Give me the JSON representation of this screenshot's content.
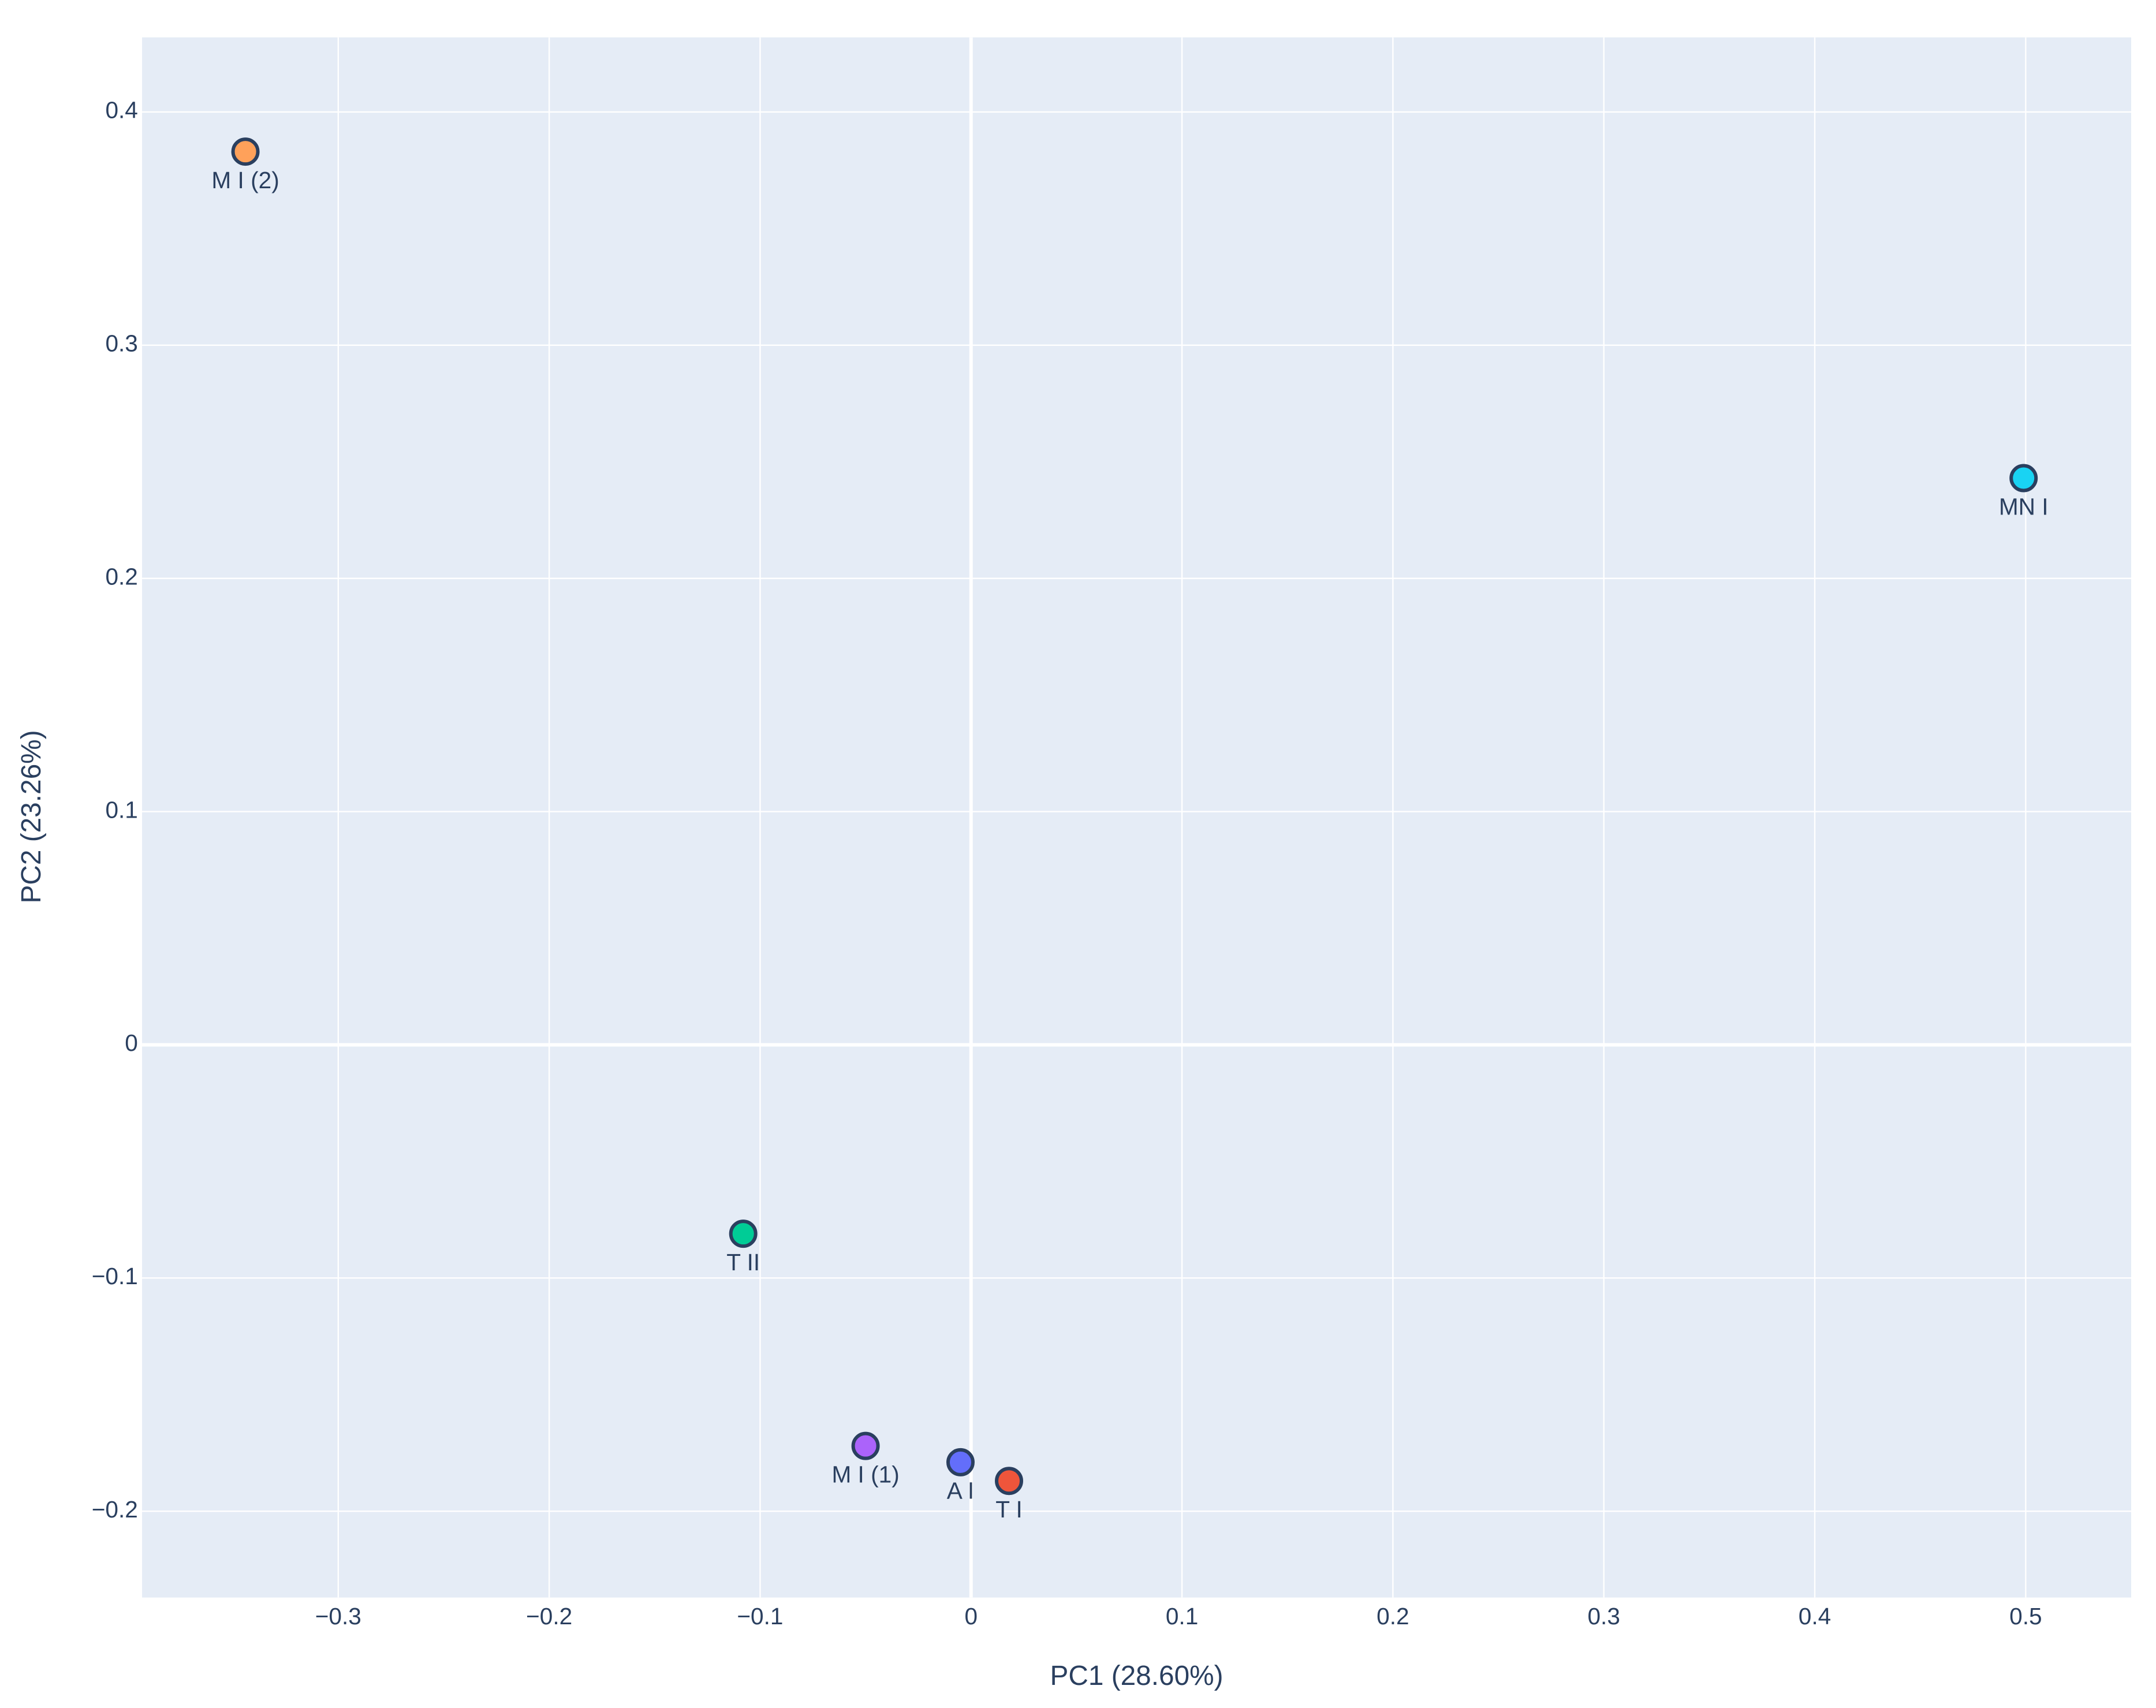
{
  "chart_data": {
    "type": "scatter",
    "x_label": "PC1 (28.60%)",
    "y_label": "PC2 (23.26%)",
    "points": [
      {
        "label": "M I (2)",
        "x": -0.344,
        "y": 0.383,
        "color": "#FFA15A"
      },
      {
        "label": "MN I",
        "x": 0.499,
        "y": 0.243,
        "color": "#19d3f3"
      },
      {
        "label": "T II",
        "x": -0.108,
        "y": -0.081,
        "color": "#00cc96"
      },
      {
        "label": "M I (1)",
        "x": -0.05,
        "y": -0.172,
        "color": "#ab63fa"
      },
      {
        "label": "A I",
        "x": -0.005,
        "y": -0.179,
        "color": "#636efa"
      },
      {
        "label": "T I",
        "x": 0.018,
        "y": -0.187,
        "color": "#EF553B"
      }
    ],
    "xlim": [
      -0.393,
      0.55
    ],
    "ylim": [
      -0.237,
      0.432
    ],
    "xticks": [
      {
        "value": -0.3,
        "label": "−0.3"
      },
      {
        "value": -0.2,
        "label": "−0.2"
      },
      {
        "value": -0.1,
        "label": "−0.1"
      },
      0,
      0.1,
      0.2,
      0.3,
      0.4,
      0.5
    ],
    "yticks": [
      {
        "value": -0.2,
        "label": "−0.2"
      },
      {
        "value": -0.1,
        "label": "−0.1"
      },
      0,
      0.1,
      0.2,
      0.3,
      0.4
    ],
    "grid": true,
    "plot_background": "#e5ecf6"
  }
}
